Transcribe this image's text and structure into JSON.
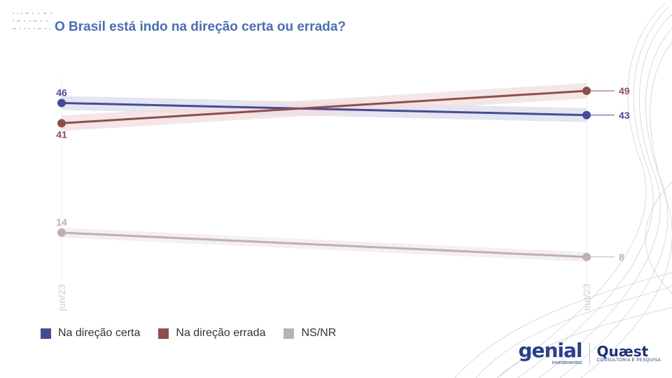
{
  "title": "O Brasil está indo na direção certa ou errada?",
  "chart_data": {
    "type": "line",
    "title": "O Brasil está indo na direção certa ou errada?",
    "x": [
      "jun/23",
      "out/23"
    ],
    "ylim": [
      0,
      60
    ],
    "grid": false,
    "legend_position": "bottom-left",
    "series": [
      {
        "name": "Na direção certa",
        "values": [
          46,
          43
        ],
        "color": "#464a96",
        "band_color": "#dcdcec"
      },
      {
        "name": "Na direção errada",
        "values": [
          41,
          49
        ],
        "color": "#8e4f4b",
        "band_color": "#f0dede"
      },
      {
        "name": "NS/NR",
        "values": [
          14,
          8
        ],
        "color": "#bcb1ad",
        "band_color": "#f2ebea"
      }
    ]
  },
  "legend": [
    {
      "label": "Na direção certa",
      "color": "#464a96"
    },
    {
      "label": "Na direção errada",
      "color": "#8e4f4b"
    },
    {
      "label": "NS/NR",
      "color": "#bcb1ad"
    }
  ],
  "logos": {
    "genial": "genial",
    "genial_sub": "investimentos",
    "quaest": "Quæst",
    "quaest_sub": "CONSULTORIA E PESQUISA"
  }
}
